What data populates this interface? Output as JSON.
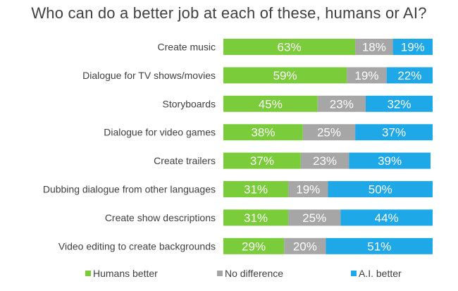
{
  "chart_data": {
    "type": "bar",
    "orientation": "horizontal",
    "stacked": true,
    "title": "Who can do a better job at each of these, humans or AI?",
    "categories": [
      "Create music",
      "Dialogue for TV shows/movies",
      "Storyboards",
      "Dialogue for video games",
      "Create trailers",
      "Dubbing dialogue from other languages",
      "Create show descriptions",
      "Video editing to create backgrounds"
    ],
    "series": [
      {
        "name": "Humans better",
        "color": "#7ACC3A",
        "values": [
          63,
          59,
          45,
          38,
          37,
          31,
          31,
          29
        ]
      },
      {
        "name": "No difference",
        "color": "#A6A6A6",
        "values": [
          18,
          19,
          23,
          25,
          23,
          19,
          25,
          20
        ]
      },
      {
        "name": "A.I. better",
        "color": "#1EA8E7",
        "values": [
          19,
          22,
          32,
          37,
          39,
          50,
          44,
          51
        ]
      }
    ],
    "value_suffix": "%",
    "xlim": [
      0,
      100
    ],
    "legend_position": "bottom",
    "grid": false
  }
}
